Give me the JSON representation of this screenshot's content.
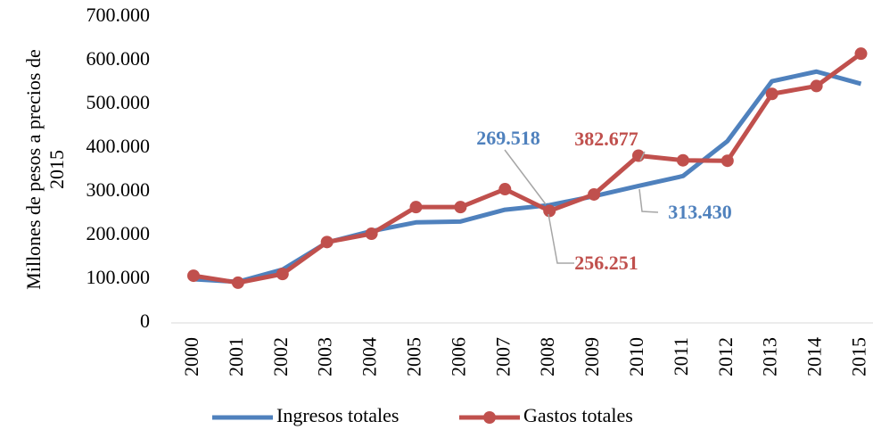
{
  "chart_data": {
    "type": "line",
    "ylabel": [
      "Millones de pesos a precios de",
      "2015"
    ],
    "categories": [
      "2000",
      "2001",
      "2002",
      "2003",
      "2004",
      "2005",
      "2006",
      "2007",
      "2008",
      "2009",
      "2010",
      "2011",
      "2012",
      "2013",
      "2014",
      "2015"
    ],
    "series": [
      {
        "name": "Ingresos totales",
        "color": "#4f81bd",
        "marker": false,
        "values": [
          100000,
          94000,
          122000,
          184000,
          210000,
          230000,
          232000,
          259000,
          269518,
          290000,
          313430,
          336000,
          416000,
          553000,
          575000,
          547000
        ],
        "value_labels": [
          null,
          null,
          null,
          null,
          null,
          null,
          null,
          null,
          "269.518",
          null,
          "313.430",
          null,
          null,
          null,
          null,
          null
        ]
      },
      {
        "name": "Gastos totales",
        "color": "#c0504d",
        "marker": true,
        "values": [
          108000,
          92000,
          112000,
          185000,
          204000,
          265000,
          265000,
          306000,
          256251,
          294000,
          382677,
          372000,
          371000,
          524000,
          542000,
          616000
        ],
        "value_labels": [
          null,
          null,
          null,
          null,
          null,
          null,
          null,
          null,
          "256.251",
          null,
          "382.677",
          null,
          null,
          null,
          null,
          null
        ]
      }
    ],
    "ylim": [
      0,
      700000
    ],
    "yticks": [
      0,
      {
        "value": 100000,
        "label": "100.000"
      },
      {
        "value": 200000,
        "label": "200.000"
      },
      {
        "value": 300000,
        "label": "300.000"
      },
      {
        "value": 400000,
        "label": "400.000"
      },
      {
        "value": 500000,
        "label": "500.000"
      },
      {
        "value": 600000,
        "label": "600.000"
      },
      {
        "value": 700000,
        "label": "700.000"
      }
    ],
    "grid": false,
    "legend": "bottom"
  }
}
